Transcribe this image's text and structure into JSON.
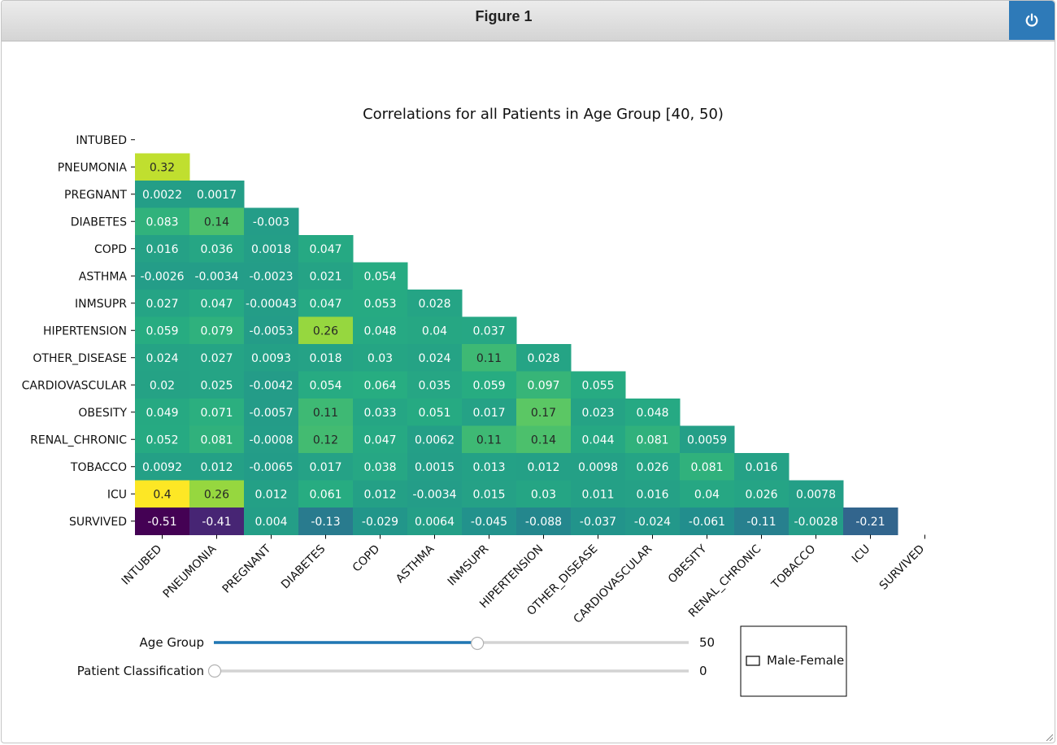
{
  "window": {
    "title": "Figure 1",
    "close_icon": "power-icon"
  },
  "chart_data": {
    "type": "heatmap",
    "title": "Correlations for all Patients in Age Group [40, 50)",
    "labels": [
      "INTUBED",
      "PNEUMONIA",
      "PREGNANT",
      "DIABETES",
      "COPD",
      "ASTHMA",
      "INMSUPR",
      "HIPERTENSION",
      "OTHER_DISEASE",
      "CARDIOVASCULAR",
      "OBESITY",
      "RENAL_CHRONIC",
      "TOBACCO",
      "ICU",
      "SURVIVED"
    ],
    "cells": [
      [],
      [
        "0.32"
      ],
      [
        "0.0022",
        "0.0017"
      ],
      [
        "0.083",
        "0.14",
        "-0.003"
      ],
      [
        "0.016",
        "0.036",
        "0.0018",
        "0.047"
      ],
      [
        "-0.0026",
        "-0.0034",
        "-0.0023",
        "0.021",
        "0.054"
      ],
      [
        "0.027",
        "0.047",
        "-0.00043",
        "0.047",
        "0.053",
        "0.028"
      ],
      [
        "0.059",
        "0.079",
        "-0.0053",
        "0.26",
        "0.048",
        "0.04",
        "0.037"
      ],
      [
        "0.024",
        "0.027",
        "0.0093",
        "0.018",
        "0.03",
        "0.024",
        "0.11",
        "0.028"
      ],
      [
        "0.02",
        "0.025",
        "-0.0042",
        "0.054",
        "0.064",
        "0.035",
        "0.059",
        "0.097",
        "0.055"
      ],
      [
        "0.049",
        "0.071",
        "-0.0057",
        "0.11",
        "0.033",
        "0.051",
        "0.017",
        "0.17",
        "0.023",
        "0.048"
      ],
      [
        "0.052",
        "0.081",
        "-0.0008",
        "0.12",
        "0.047",
        "0.0062",
        "0.11",
        "0.14",
        "0.044",
        "0.081",
        "0.0059"
      ],
      [
        "0.0092",
        "0.012",
        "-0.0065",
        "0.017",
        "0.038",
        "0.0015",
        "0.013",
        "0.012",
        "0.0098",
        "0.026",
        "0.081",
        "0.016"
      ],
      [
        "0.4",
        "0.26",
        "0.012",
        "0.061",
        "0.012",
        "-0.0034",
        "0.015",
        "0.03",
        "0.011",
        "0.016",
        "0.04",
        "0.026",
        "0.0078"
      ],
      [
        "-0.51",
        "-0.41",
        "0.004",
        "-0.13",
        "-0.029",
        "0.0064",
        "-0.045",
        "-0.088",
        "-0.037",
        "-0.024",
        "-0.061",
        "-0.11",
        "-0.0028",
        "-0.21"
      ]
    ],
    "color_range": [
      -0.51,
      0.4
    ],
    "colormap": "viridis"
  },
  "controls": {
    "age_slider": {
      "label": "Age Group",
      "value": 50,
      "value_text": "50",
      "fraction": 0.555,
      "color": "#1f77b4"
    },
    "class_slider": {
      "label": "Patient Classification",
      "value": 0,
      "value_text": "0",
      "fraction": 0.0,
      "color": "#1f77b4"
    },
    "checkbox": {
      "label": "Male-Female",
      "checked": false
    }
  }
}
